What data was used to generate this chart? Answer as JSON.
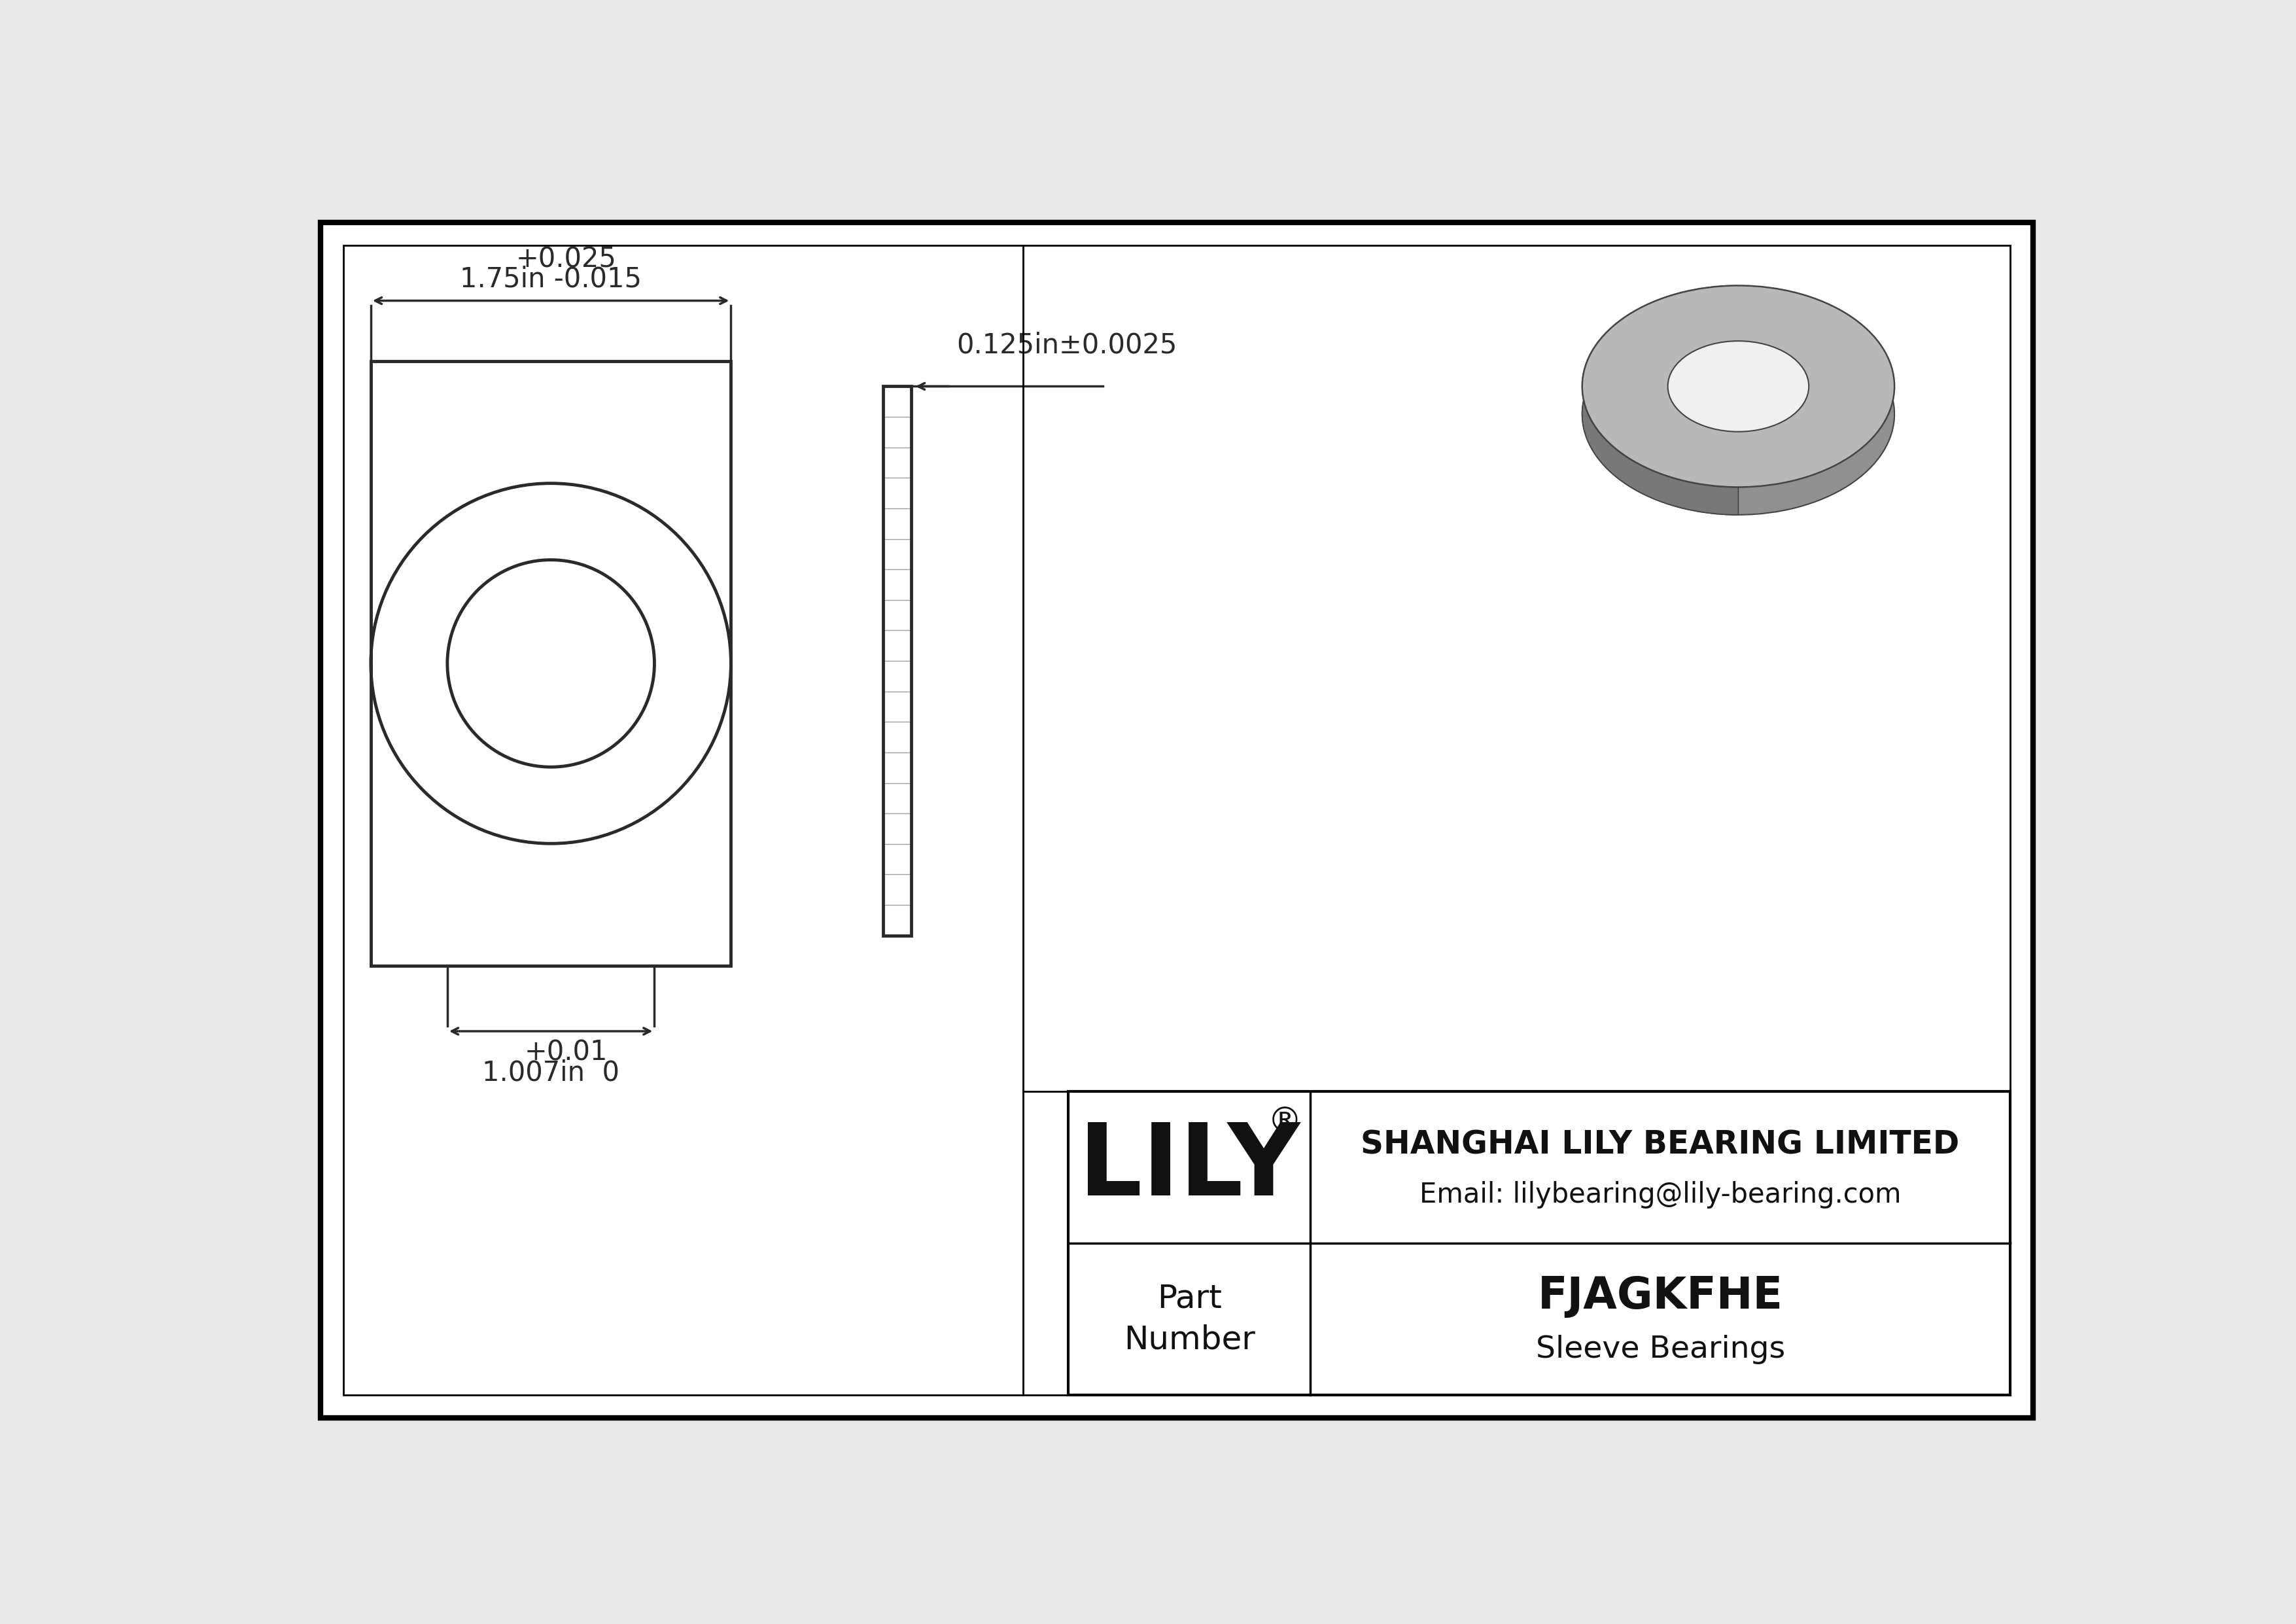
{
  "bg_color": "#e8e8e8",
  "drawing_bg": "#ffffff",
  "line_color": "#2a2a2a",
  "dim_color": "#2a2a2a",
  "border_color": "#000000",
  "title": "FJAGKFHE",
  "subtitle": "Sleeve Bearings",
  "company": "SHANGHAI LILY BEARING LIMITED",
  "email": "Email: lilybearing@lily-bearing.com",
  "part_label": "Part\nNumber",
  "outer_dia_label": "1.75in",
  "outer_dia_tol_plus": "+0.025",
  "outer_dia_tol_minus": "-0.015",
  "inner_dia_label": "1.007in",
  "inner_dia_tol_plus": "+0.01",
  "inner_dia_tol_minus": "0",
  "thickness_label": "0.125in±0.0025"
}
